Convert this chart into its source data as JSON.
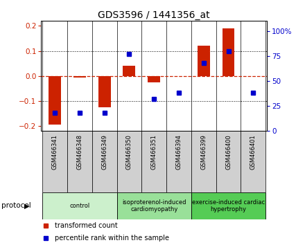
{
  "title": "GDS3596 / 1441356_at",
  "samples": [
    "GSM466341",
    "GSM466348",
    "GSM466349",
    "GSM466350",
    "GSM466351",
    "GSM466394",
    "GSM466399",
    "GSM466400",
    "GSM466401"
  ],
  "bar_values": [
    -0.195,
    -0.005,
    -0.125,
    0.04,
    -0.025,
    0.0,
    0.12,
    0.19,
    0.0
  ],
  "dot_values": [
    18,
    18,
    18,
    77,
    32,
    38,
    68,
    80,
    38
  ],
  "ylim_left": [
    -0.22,
    0.22
  ],
  "ylim_right": [
    0,
    110
  ],
  "yticks_left": [
    -0.2,
    -0.1,
    0,
    0.1,
    0.2
  ],
  "yticks_right": [
    0,
    25,
    50,
    75,
    100
  ],
  "ytick_right_labels": [
    "0",
    "25",
    "50",
    "75",
    "100%"
  ],
  "groups": [
    {
      "label": "control",
      "start": 0,
      "end": 3,
      "color": "#ccf0cc"
    },
    {
      "label": "isoproterenol-induced\ncardiomyopathy",
      "start": 3,
      "end": 6,
      "color": "#99e099"
    },
    {
      "label": "exercise-induced cardiac\nhypertrophy",
      "start": 6,
      "end": 9,
      "color": "#55cc55"
    }
  ],
  "bar_color": "#cc2200",
  "dot_color": "#0000cc",
  "zero_line_color": "#cc2200",
  "left_tick_color": "#cc2200",
  "right_tick_color": "#0000cc",
  "legend_bar_label": "transformed count",
  "legend_dot_label": "percentile rank within the sample",
  "protocol_label": "protocol",
  "sample_bg_color": "#d0d0d0",
  "bar_width": 0.5
}
